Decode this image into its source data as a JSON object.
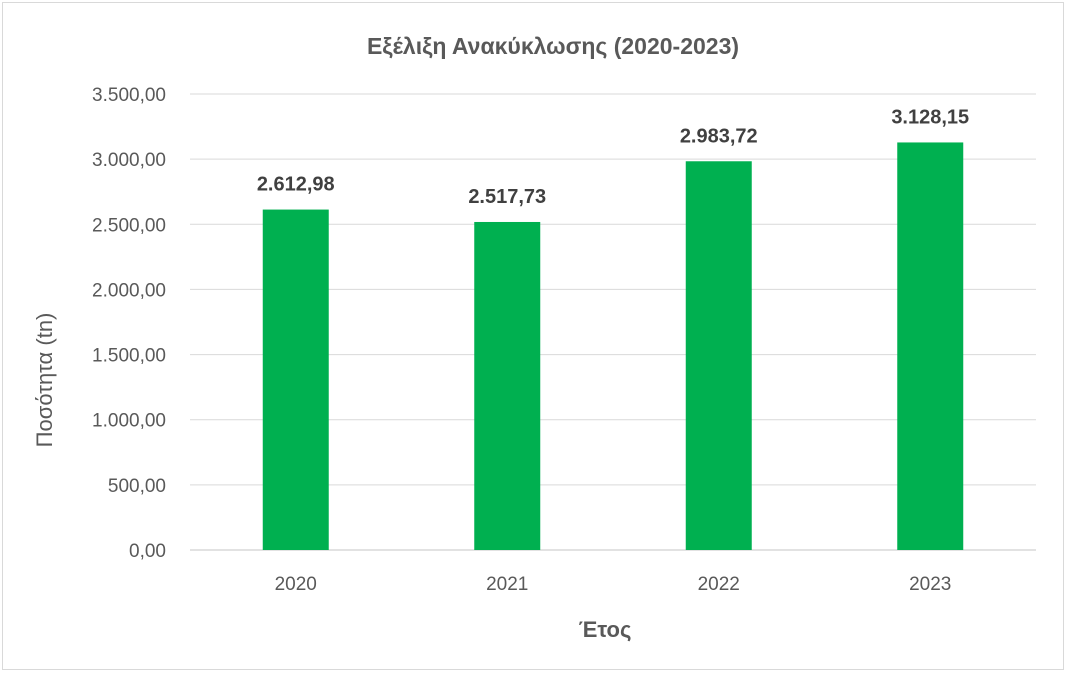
{
  "chart_data": {
    "type": "bar",
    "title": "Εξέλιξη Ανακύκλωσης (2020-2023)",
    "xlabel": "Έτος",
    "ylabel": "Ποσότητα (tn)",
    "categories": [
      "2020",
      "2021",
      "2022",
      "2023"
    ],
    "values": [
      2612.98,
      2517.73,
      2983.72,
      3128.15
    ],
    "value_labels": [
      "2.612,98",
      "2.517,73",
      "2.983,72",
      "3.128,15"
    ],
    "ylim": [
      0,
      3500
    ],
    "yticks": [
      0,
      500,
      1000,
      1500,
      2000,
      2500,
      3000,
      3500
    ],
    "ytick_labels": [
      "0,00",
      "500,00",
      "1.000,00",
      "1.500,00",
      "2.000,00",
      "2.500,00",
      "3.000,00",
      "3.500,00"
    ],
    "bar_color": "#00b050",
    "grid": true,
    "legend": "none"
  }
}
